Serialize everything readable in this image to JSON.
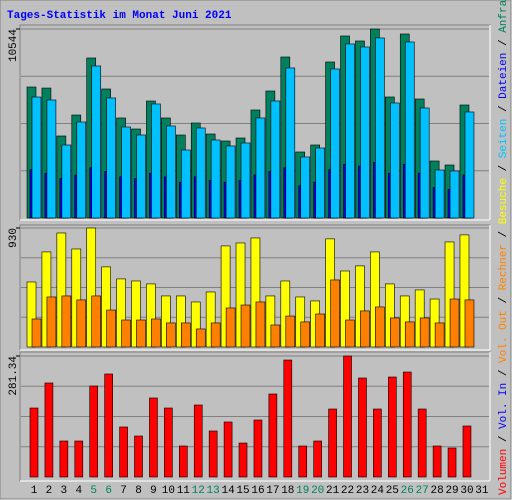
{
  "chart_data": [
    {
      "type": "bar",
      "title": "Tages-Statistik im Monat Juni 2021",
      "categories": [
        1,
        2,
        3,
        4,
        5,
        6,
        7,
        8,
        9,
        10,
        11,
        12,
        13,
        14,
        15,
        16,
        17,
        18,
        19,
        20,
        21,
        22,
        23,
        24,
        25,
        26,
        27,
        28,
        29,
        30,
        31
      ],
      "highlight_categories": [
        5,
        6,
        12,
        13,
        19,
        20,
        26,
        27
      ],
      "highlight_color": "#00805c",
      "ylim": [
        0,
        10544
      ],
      "yticks": [
        10544
      ],
      "series": [
        {
          "name": "Anfragen",
          "color": "#00805c",
          "values": [
            7308,
            7250,
            4575,
            5746,
            8926,
            7197,
            5579,
            4965,
            6527,
            5579,
            4631,
            5300,
            4686,
            4296,
            4463,
            6025,
            7085,
            8982,
            3682,
            4073,
            8703,
            10154,
            9875,
            10544,
            6750,
            10265,
            6639,
            3180,
            2957,
            6304,
            null
          ]
        },
        {
          "name": "Dateien",
          "color": "#0000ff",
          "values": [
            2700,
            2500,
            2200,
            2400,
            2800,
            2600,
            2300,
            2200,
            2500,
            2300,
            2000,
            2300,
            2100,
            2000,
            2100,
            2400,
            2600,
            2800,
            1800,
            2000,
            2700,
            3000,
            2900,
            3100,
            2500,
            3000,
            2500,
            1700,
            1600,
            2400,
            null
          ]
        },
        {
          "name": "Seiten",
          "color": "#00c0ff",
          "values": [
            6750,
            6584,
            4073,
            5357,
            8482,
            6696,
            5078,
            4631,
            6361,
            5134,
            3794,
            5022,
            4352,
            4018,
            4185,
            5580,
            6529,
            8370,
            3404,
            3906,
            8314,
            9709,
            9542,
            10044,
            6417,
            9821,
            6138,
            2678,
            2623,
            5915,
            null
          ]
        }
      ]
    },
    {
      "type": "bar",
      "ylim": [
        0,
        930
      ],
      "yticks": [
        930
      ],
      "series": [
        {
          "name": "Besuche",
          "color": "#ffff00",
          "values": [
            508,
            743,
            891,
            766,
            930,
            626,
            532,
            516,
            493,
            399,
            399,
            352,
            430,
            790,
            813,
            852,
            399,
            516,
            391,
            360,
            845,
            594,
            634,
            743,
            493,
            399,
            446,
            375,
            821,
            876,
            null
          ]
        },
        {
          "name": "Rechner",
          "color": "#ff8000",
          "values": [
            219,
            391,
            399,
            368,
            399,
            289,
            211,
            211,
            219,
            188,
            188,
            141,
            188,
            305,
            328,
            352,
            172,
            242,
            196,
            258,
            524,
            211,
            282,
            313,
            227,
            196,
            227,
            188,
            375,
            368,
            null
          ]
        }
      ]
    },
    {
      "type": "bar",
      "ylim": [
        0,
        281.34
      ],
      "yticks": [
        281.34
      ],
      "series": [
        {
          "name": "Volumen",
          "color": "#ff0000",
          "values": [
            160.4,
            218.6,
            83.7,
            83.7,
            211.6,
            239.5,
            116.3,
            95.3,
            183.7,
            160.4,
            72.1,
            167.4,
            107,
            127.9,
            79,
            132.5,
            193,
            272,
            72.1,
            83.7,
            158.1,
            281.34,
            230.2,
            158.1,
            232.5,
            244.1,
            158.1,
            72.1,
            67.4,
            118.6,
            null
          ]
        }
      ],
      "extra_legend": [
        {
          "name": "Vol. In",
          "color": "#0000ff"
        },
        {
          "name": "Vol. Out",
          "color": "#ff8000"
        }
      ],
      "legend_separator": " / "
    }
  ]
}
